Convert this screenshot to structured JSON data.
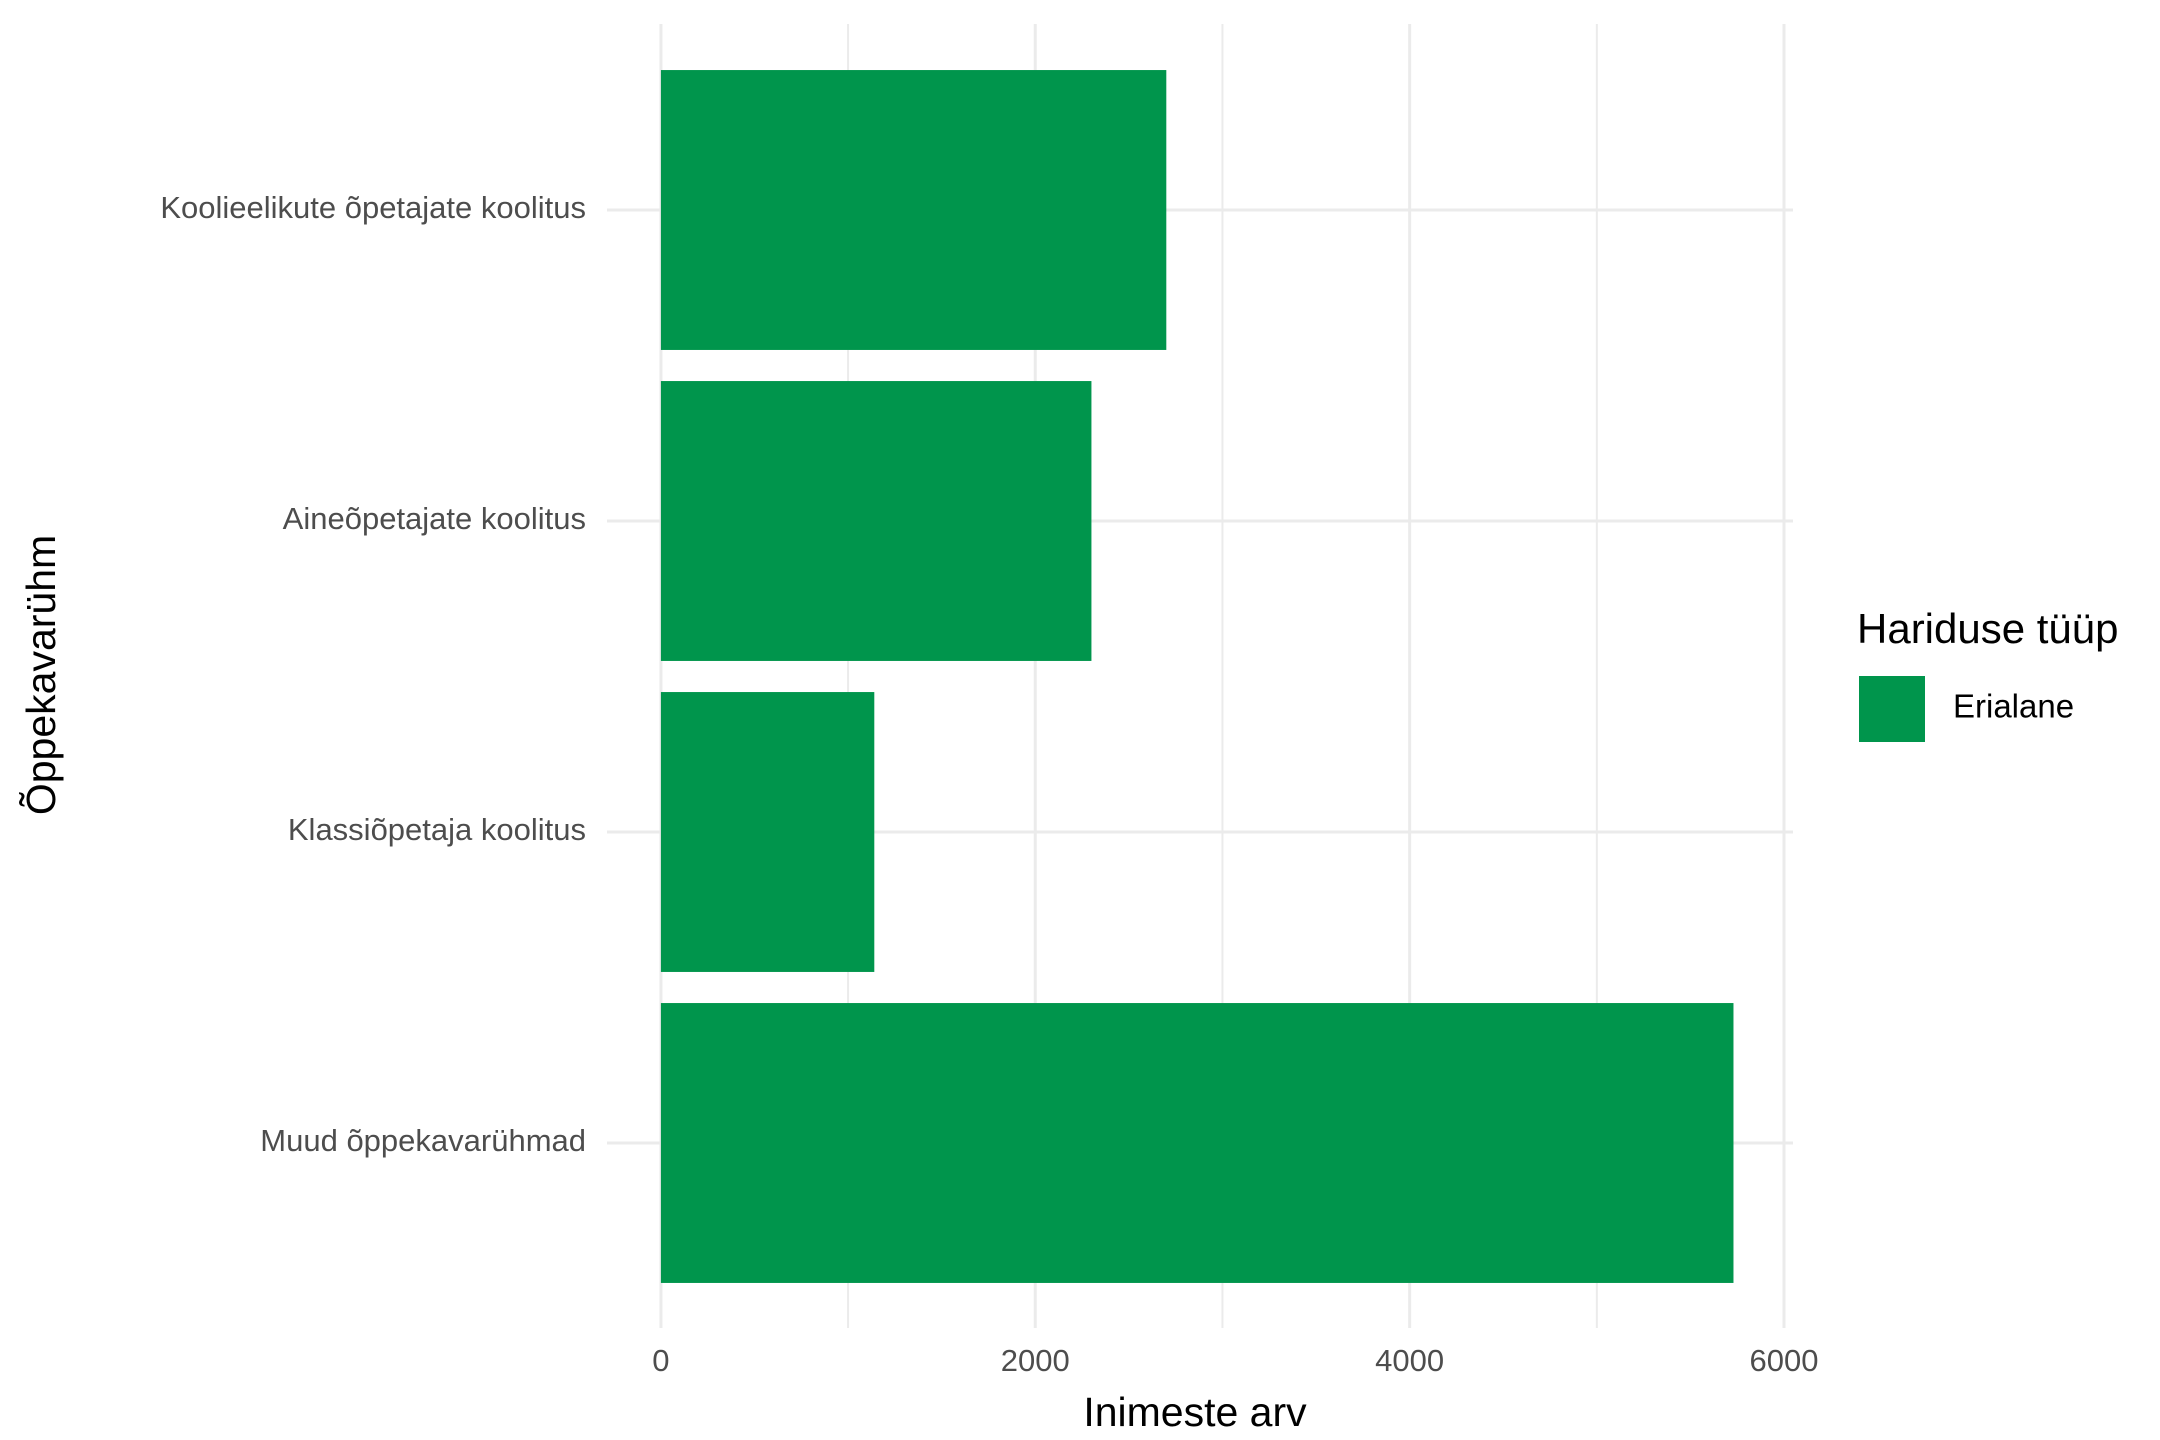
{
  "chart_data": {
    "type": "barh",
    "categories": [
      "Koolieelikute õpetajate koolitus",
      "Aineõpetajate koolitus",
      "Klassiõpetaja koolitus",
      "Muud õppekavarühmad"
    ],
    "series": [
      {
        "name": "Erialane",
        "color": "#00954c",
        "values": [
          2700,
          2300,
          1140,
          5730
        ]
      }
    ],
    "xlabel": "Inimeste arv",
    "ylabel": "Õppekavarühm",
    "legend_title": "Hariduse tüüp",
    "xlim": [
      -288,
      6048
    ],
    "xticks": [
      0,
      2000,
      4000,
      6000
    ],
    "x_minor_ticks": [
      1000,
      3000,
      5000
    ],
    "grid": true,
    "legend_position": "right"
  }
}
